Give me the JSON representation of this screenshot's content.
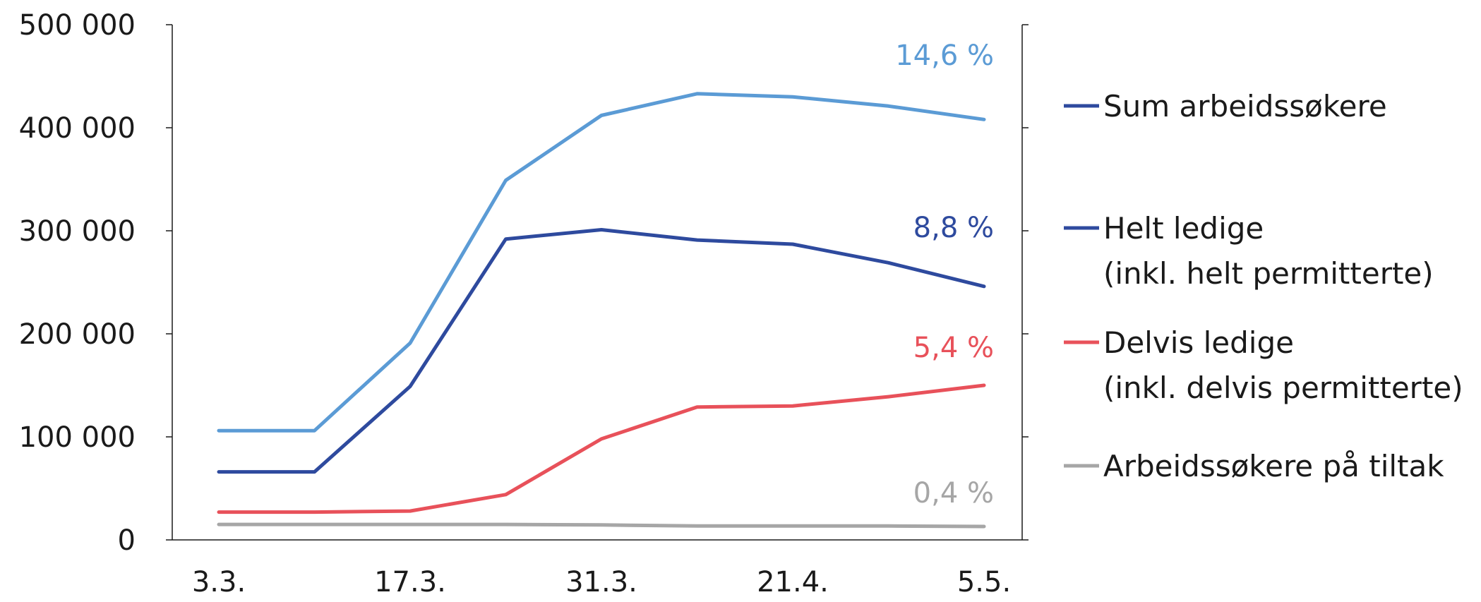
{
  "chart_data": {
    "type": "line",
    "title": "",
    "xlabel": "",
    "ylabel": "",
    "ylim": [
      0,
      500000
    ],
    "y_ticks": [
      {
        "value": 0,
        "label": "0"
      },
      {
        "value": 100000,
        "label": "100 000"
      },
      {
        "value": 200000,
        "label": "200 000"
      },
      {
        "value": 300000,
        "label": "300 000"
      },
      {
        "value": 400000,
        "label": "400 000"
      },
      {
        "value": 500000,
        "label": "500 000"
      }
    ],
    "x_points": 9,
    "x_tick_labels": [
      {
        "index": 0,
        "label": "3.3."
      },
      {
        "index": 2,
        "label": "17.3."
      },
      {
        "index": 4,
        "label": "31.3."
      },
      {
        "index": 6,
        "label": "21.4."
      },
      {
        "index": 8,
        "label": "5.5."
      }
    ],
    "grid": false,
    "legend_position": "right",
    "series": [
      {
        "name": "Sum arbeidssøkere",
        "color": "#5b9bd5",
        "legend_color": "#2e4a9e",
        "values": [
          106000,
          106000,
          191000,
          349000,
          412000,
          433000,
          430000,
          421000,
          408000
        ],
        "end_label": "14,6 %"
      },
      {
        "name": "Helt ledige\n(inkl. helt permitterte)",
        "color": "#2e4a9e",
        "legend_color": "#2e4a9e",
        "values": [
          66000,
          66000,
          149000,
          292000,
          301000,
          291000,
          287000,
          269000,
          246000
        ],
        "end_label": "8,8 %"
      },
      {
        "name": "Delvis ledige\n(inkl. delvis permitterte)",
        "color": "#e8515a",
        "legend_color": "#e8515a",
        "values": [
          27000,
          27000,
          28000,
          44000,
          98000,
          129000,
          130000,
          139000,
          150000
        ],
        "end_label": "5,4 %"
      },
      {
        "name": "Arbeidssøkere på tiltak",
        "color": "#a6a6a6",
        "legend_color": "#a6a6a6",
        "values": [
          15000,
          15000,
          15000,
          15000,
          14500,
          13500,
          13500,
          13500,
          13000
        ],
        "end_label": "0,4 %"
      }
    ]
  }
}
